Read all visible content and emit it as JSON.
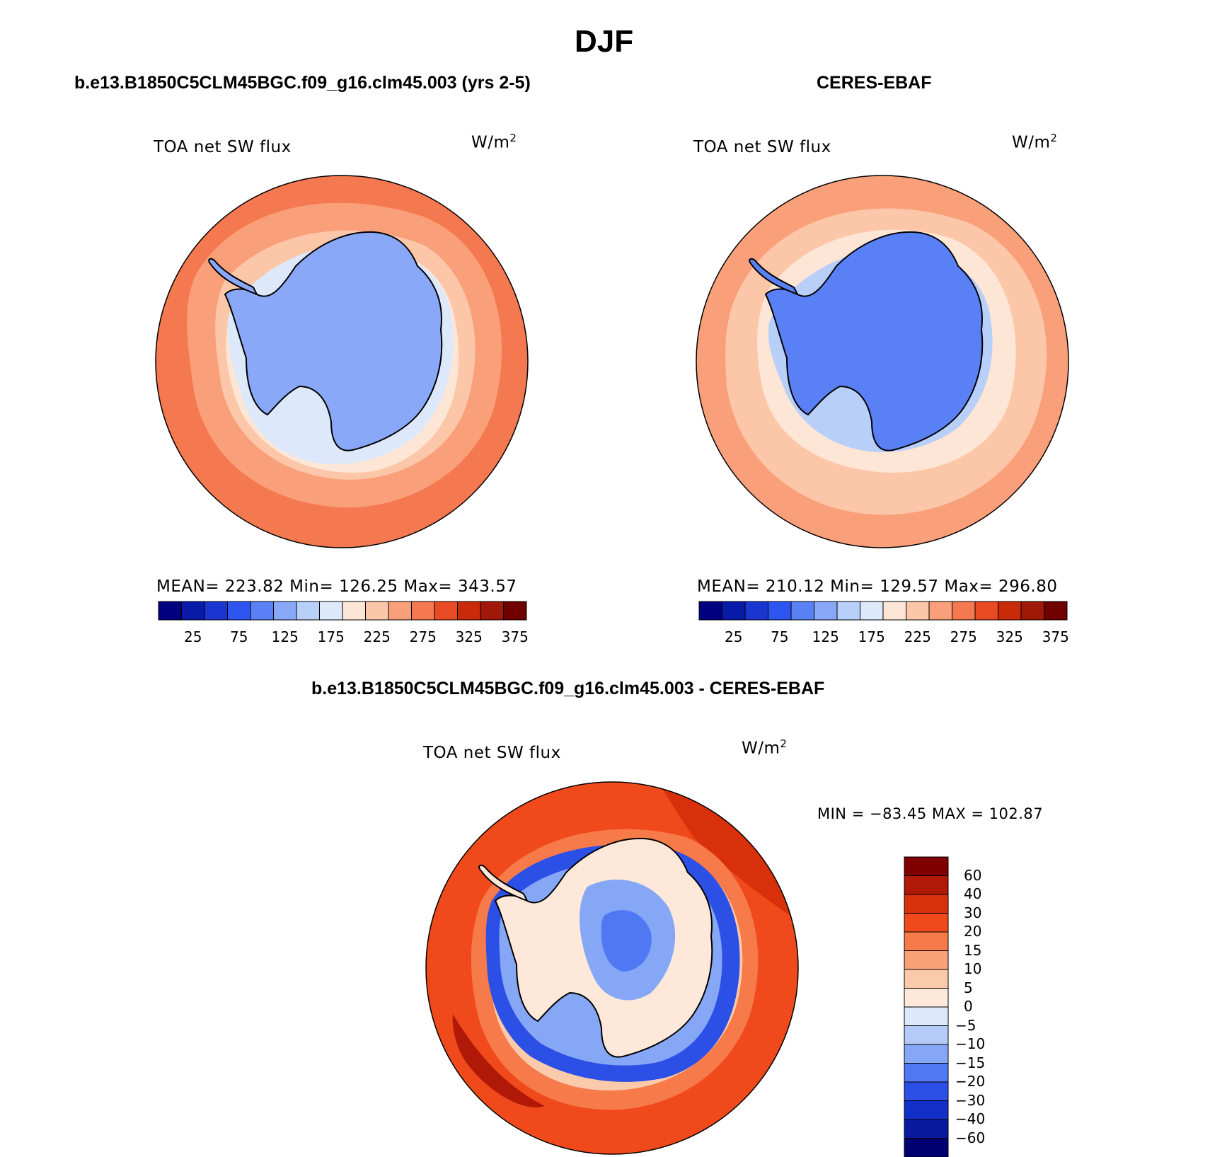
{
  "main_title": "DJF",
  "panels": [
    {
      "title": "b.e13.B1850C5CLM45BGC.f09_g16.clm45.003 (yrs 2-5)",
      "variable": "TOA net SW flux",
      "units_base": "W/m",
      "units_exp": "2",
      "stats": "MEAN= 223.82   Min= 126.25   Max= 343.57"
    },
    {
      "title": "CERES-EBAF",
      "variable": "TOA net SW flux",
      "units_base": "W/m",
      "units_exp": "2",
      "stats": "MEAN= 210.12   Min= 129.57   Max= 296.80"
    }
  ],
  "diff_panel": {
    "title": "b.e13.B1850C5CLM45BGC.f09_g16.clm45.003 - CERES-EBAF",
    "variable": "TOA net SW flux",
    "units_base": "W/m",
    "units_exp": "2",
    "stats": "MIN = −83.45 MAX = 102.87"
  },
  "colorbar_abs": {
    "labels": [
      "25",
      "75",
      "125",
      "175",
      "225",
      "275",
      "325",
      "375"
    ],
    "colors": [
      "#000080",
      "#0a1aa8",
      "#1a35d0",
      "#2e55f0",
      "#5a80f5",
      "#8aa8f8",
      "#b8cffa",
      "#dde9fb",
      "#fde6d6",
      "#fcc7a8",
      "#f9a07a",
      "#f47850",
      "#e84a24",
      "#c92a0a",
      "#a01808",
      "#700000"
    ]
  },
  "colorbar_diff": {
    "labels": [
      "60",
      "40",
      "30",
      "20",
      "15",
      "10",
      "5",
      "0",
      "−5",
      "−10",
      "−15",
      "−20",
      "−30",
      "−40",
      "−60"
    ],
    "colors": [
      "#800000",
      "#b01808",
      "#d8300a",
      "#f04a1c",
      "#f67a4a",
      "#f9a27a",
      "#fbcaaa",
      "#fde8da",
      "#dde8fb",
      "#b4cbfa",
      "#86a6f6",
      "#5078f2",
      "#2c4fe6",
      "#1230c8",
      "#0a1aa0",
      "#000070"
    ]
  }
}
